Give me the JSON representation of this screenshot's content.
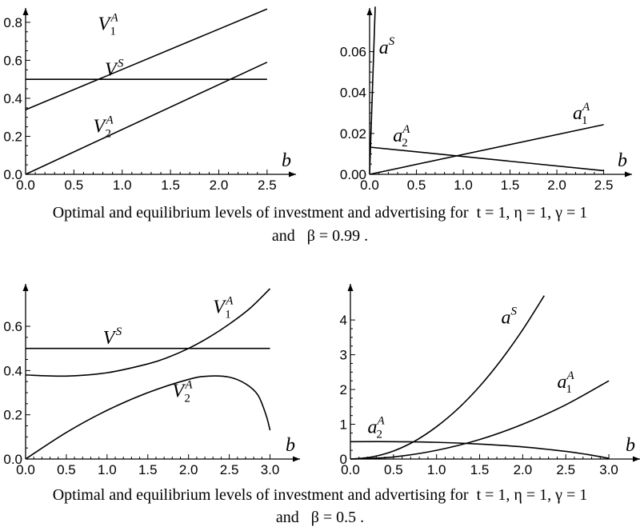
{
  "captions": [
    {
      "text": "Optimal and equilibrium levels of investment and advertising for",
      "params": "t = 1,   η = 1,   γ = 1",
      "line2_and": "and",
      "line2_param": "β = 0.99 ."
    },
    {
      "text": "Optimal and equilibrium levels of investment and advertising for",
      "params": "t = 1,   η = 1,   γ = 1",
      "line2_and": "and",
      "line2_param": "β = 0.5 ."
    }
  ],
  "chart_data": [
    {
      "type": "line",
      "panel": "top-left",
      "xlabel": "b",
      "ylabel": "",
      "xlim": [
        0,
        2.7
      ],
      "ylim": [
        0,
        0.85
      ],
      "xticks": [
        0.0,
        0.5,
        1.0,
        1.5,
        2.0,
        2.5
      ],
      "xtick_labels": [
        "0.0",
        "0.5",
        "1.0",
        "1.5",
        "2.0",
        "2.5"
      ],
      "yticks": [
        0.0,
        0.2,
        0.4,
        0.6,
        0.8
      ],
      "ytick_labels": [
        "0.0",
        "0.2",
        "0.4",
        "0.6",
        "0.8"
      ],
      "series": [
        {
          "name": "V_1^A",
          "base": "V",
          "sub": "1",
          "sup": "A",
          "x": [
            0,
            2.5
          ],
          "y": [
            0.34,
            0.87
          ]
        },
        {
          "name": "V^S",
          "base": "V",
          "sub": "",
          "sup": "S",
          "x": [
            0,
            2.5
          ],
          "y": [
            0.5,
            0.5
          ]
        },
        {
          "name": "V_2^A",
          "base": "V",
          "sub": "2",
          "sup": "A",
          "x": [
            0,
            2.5
          ],
          "y": [
            0.0,
            0.59
          ]
        }
      ],
      "labels_at": [
        [
          0.75,
          0.76
        ],
        [
          0.82,
          0.52
        ],
        [
          0.7,
          0.22
        ]
      ]
    },
    {
      "type": "line",
      "panel": "top-right",
      "xlabel": "b",
      "ylabel": "",
      "xlim": [
        0,
        2.7
      ],
      "ylim": [
        0,
        0.079
      ],
      "xticks": [
        0.0,
        0.5,
        1.0,
        1.5,
        2.0,
        2.5
      ],
      "xtick_labels": [
        "0.0",
        "0.5",
        "1.0",
        "1.5",
        "2.0",
        "2.5"
      ],
      "yticks": [
        0.0,
        0.02,
        0.04,
        0.06
      ],
      "ytick_labels": [
        "0.00",
        "0.02",
        "0.04",
        "0.06"
      ],
      "series": [
        {
          "name": "a^S",
          "base": "a",
          "sub": "",
          "sup": "S",
          "x": [
            0.0,
            0.06
          ],
          "y": [
            0.0,
            0.082
          ]
        },
        {
          "name": "a_1^A",
          "base": "a",
          "sub": "1",
          "sup": "A",
          "x": [
            0.0,
            2.5
          ],
          "y": [
            0.0,
            0.0243
          ]
        },
        {
          "name": "a_2^A",
          "base": "a",
          "sub": "2",
          "sup": "A",
          "x": [
            0.0,
            2.5
          ],
          "y": [
            0.0133,
            0.0018
          ]
        }
      ],
      "labels_at": [
        [
          0.1,
          0.059
        ],
        [
          2.17,
          0.027
        ],
        [
          0.25,
          0.016
        ]
      ]
    },
    {
      "type": "line",
      "panel": "bottom-left",
      "xlabel": "b",
      "ylabel": "",
      "xlim": [
        0,
        3.25
      ],
      "ylim": [
        0,
        0.77
      ],
      "xticks": [
        0.0,
        0.5,
        1.0,
        1.5,
        2.0,
        2.5,
        3.0
      ],
      "xtick_labels": [
        "0.0",
        "0.5",
        "1.0",
        "1.5",
        "2.0",
        "2.5",
        "3.0"
      ],
      "yticks": [
        0.0,
        0.2,
        0.4,
        0.6
      ],
      "ytick_labels": [
        "0.0",
        "0.2",
        "0.4",
        "0.6"
      ],
      "series": [
        {
          "name": "V_1^A",
          "base": "V",
          "sub": "1",
          "sup": "A",
          "x": [
            0,
            0.5,
            1.0,
            1.5,
            1.75,
            2.0,
            2.25,
            2.5,
            2.75,
            3.0
          ],
          "y": [
            0.38,
            0.375,
            0.39,
            0.43,
            0.46,
            0.5,
            0.55,
            0.61,
            0.68,
            0.77
          ]
        },
        {
          "name": "V^S",
          "base": "V",
          "sub": "",
          "sup": "S",
          "x": [
            0,
            3.0
          ],
          "y": [
            0.5,
            0.5
          ]
        },
        {
          "name": "V_2^A",
          "base": "V",
          "sub": "2",
          "sup": "A",
          "x": [
            0,
            0.5,
            1.0,
            1.5,
            2.0,
            2.25,
            2.5,
            2.7,
            2.85,
            2.95,
            3.0
          ],
          "y": [
            0.0,
            0.12,
            0.22,
            0.3,
            0.36,
            0.375,
            0.37,
            0.34,
            0.29,
            0.2,
            0.13
          ]
        }
      ],
      "labels_at": [
        [
          2.3,
          0.66
        ],
        [
          0.95,
          0.52
        ],
        [
          1.8,
          0.28
        ]
      ]
    },
    {
      "type": "line",
      "panel": "bottom-right",
      "xlabel": "b",
      "ylabel": "",
      "xlim": [
        0,
        3.25
      ],
      "ylim": [
        0,
        4.9
      ],
      "xticks": [
        0.0,
        0.5,
        1.0,
        1.5,
        2.0,
        2.5,
        3.0
      ],
      "xtick_labels": [
        "0.0",
        "0.5",
        "1.0",
        "1.5",
        "2.0",
        "2.5",
        "3.0"
      ],
      "yticks": [
        0,
        1,
        2,
        3,
        4
      ],
      "ytick_labels": [
        "0",
        "1",
        "2",
        "3",
        "4"
      ],
      "series": [
        {
          "name": "a^S",
          "base": "a",
          "sub": "",
          "sup": "S",
          "x": [
            0,
            0.25,
            0.5,
            0.75,
            1.0,
            1.25,
            1.5,
            1.75,
            2.0,
            2.25
          ],
          "y": [
            0,
            0.06,
            0.23,
            0.52,
            0.93,
            1.45,
            2.09,
            2.85,
            3.72,
            4.7
          ]
        },
        {
          "name": "a_1^A",
          "base": "a",
          "sub": "1",
          "sup": "A",
          "x": [
            0,
            0.5,
            1.0,
            1.5,
            2.0,
            2.5,
            3.0
          ],
          "y": [
            0,
            0.06,
            0.25,
            0.56,
            1.0,
            1.56,
            2.25
          ]
        },
        {
          "name": "a_2^A",
          "base": "a",
          "sub": "2",
          "sup": "A",
          "x": [
            0,
            0.5,
            1.0,
            1.5,
            2.0,
            2.5,
            2.75,
            3.0
          ],
          "y": [
            0.5,
            0.5,
            0.48,
            0.43,
            0.35,
            0.22,
            0.13,
            0.02
          ]
        }
      ],
      "labels_at": [
        [
          1.75,
          3.9
        ],
        [
          2.4,
          2.05
        ],
        [
          0.2,
          0.75
        ]
      ]
    }
  ]
}
